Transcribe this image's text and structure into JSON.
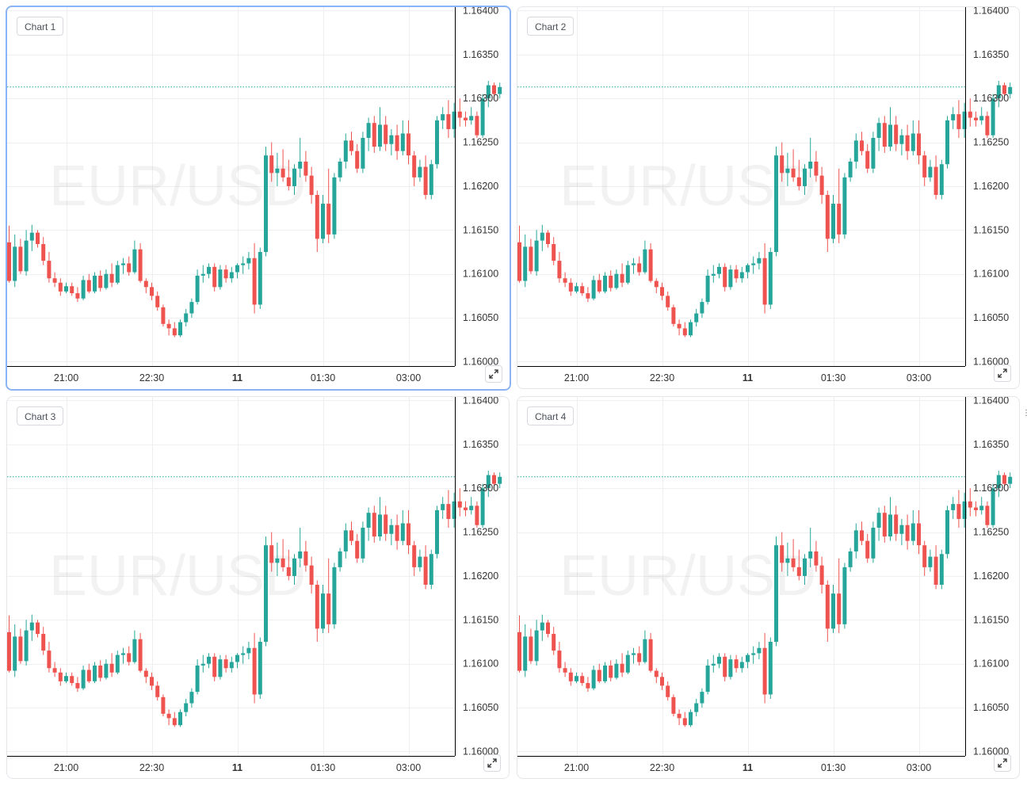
{
  "chart_data": [
    {
      "type": "candlestick",
      "title": "Chart 1",
      "watermark": "EUR/USD"
    },
    {
      "type": "candlestick",
      "title": "Chart 2",
      "watermark": "EUR/USD"
    },
    {
      "type": "candlestick",
      "title": "Chart 3",
      "watermark": "EUR/USD"
    },
    {
      "type": "candlestick",
      "title": "Chart 4",
      "watermark": "EUR/USD"
    }
  ],
  "shared": {
    "symbol": "EUR/USD",
    "y_ticks": [
      "1.16400",
      "1.16350",
      "1.16300",
      "1.16250",
      "1.16200",
      "1.16150",
      "1.16100",
      "1.16050",
      "1.16000"
    ],
    "ylim": [
      1.15995,
      1.16404
    ],
    "x_ticks": [
      {
        "label": "21:00",
        "index": 10,
        "bold": false
      },
      {
        "label": "22:30",
        "index": 25,
        "bold": false
      },
      {
        "label": "11",
        "index": 40,
        "bold": true
      },
      {
        "label": "01:30",
        "index": 55,
        "bold": false
      },
      {
        "label": "03:00",
        "index": 70,
        "bold": false
      }
    ],
    "last_price": 1.16313,
    "colors": {
      "up": "#26a69a",
      "down": "#ef5350",
      "grid": "#eeeff1",
      "axis": "#000000",
      "text": "#333333",
      "last_line": "#26a69a"
    },
    "candles": [
      {
        "o": 1.16136,
        "h": 1.16155,
        "l": 1.1609,
        "c": 1.16092
      },
      {
        "o": 1.16092,
        "h": 1.16145,
        "l": 1.16085,
        "c": 1.16131
      },
      {
        "o": 1.16131,
        "h": 1.1614,
        "l": 1.161,
        "c": 1.16103
      },
      {
        "o": 1.16103,
        "h": 1.1615,
        "l": 1.16098,
        "c": 1.16138
      },
      {
        "o": 1.16138,
        "h": 1.16156,
        "l": 1.16126,
        "c": 1.16147
      },
      {
        "o": 1.16147,
        "h": 1.1615,
        "l": 1.1613,
        "c": 1.16134
      },
      {
        "o": 1.16134,
        "h": 1.16142,
        "l": 1.1611,
        "c": 1.16115
      },
      {
        "o": 1.16115,
        "h": 1.16125,
        "l": 1.1609,
        "c": 1.16095
      },
      {
        "o": 1.16095,
        "h": 1.16102,
        "l": 1.16085,
        "c": 1.1609
      },
      {
        "o": 1.1609,
        "h": 1.16095,
        "l": 1.16075,
        "c": 1.1608
      },
      {
        "o": 1.1608,
        "h": 1.1609,
        "l": 1.16078,
        "c": 1.16086
      },
      {
        "o": 1.16086,
        "h": 1.1609,
        "l": 1.16075,
        "c": 1.16078
      },
      {
        "o": 1.16078,
        "h": 1.16085,
        "l": 1.16068,
        "c": 1.16072
      },
      {
        "o": 1.16072,
        "h": 1.16098,
        "l": 1.1607,
        "c": 1.16093
      },
      {
        "o": 1.16093,
        "h": 1.161,
        "l": 1.16078,
        "c": 1.1608
      },
      {
        "o": 1.1608,
        "h": 1.16102,
        "l": 1.16078,
        "c": 1.16098
      },
      {
        "o": 1.16098,
        "h": 1.16104,
        "l": 1.1608,
        "c": 1.16084
      },
      {
        "o": 1.16084,
        "h": 1.16105,
        "l": 1.16082,
        "c": 1.161
      },
      {
        "o": 1.161,
        "h": 1.16112,
        "l": 1.16085,
        "c": 1.1609
      },
      {
        "o": 1.1609,
        "h": 1.16115,
        "l": 1.16088,
        "c": 1.1611
      },
      {
        "o": 1.1611,
        "h": 1.16118,
        "l": 1.161,
        "c": 1.16112
      },
      {
        "o": 1.16112,
        "h": 1.1612,
        "l": 1.16098,
        "c": 1.16102
      },
      {
        "o": 1.16102,
        "h": 1.16138,
        "l": 1.161,
        "c": 1.16128
      },
      {
        "o": 1.16128,
        "h": 1.16135,
        "l": 1.1609,
        "c": 1.16092
      },
      {
        "o": 1.16092,
        "h": 1.16095,
        "l": 1.16078,
        "c": 1.16085
      },
      {
        "o": 1.16085,
        "h": 1.1609,
        "l": 1.1607,
        "c": 1.16075
      },
      {
        "o": 1.16075,
        "h": 1.1608,
        "l": 1.16058,
        "c": 1.16062
      },
      {
        "o": 1.16062,
        "h": 1.16065,
        "l": 1.1604,
        "c": 1.16043
      },
      {
        "o": 1.16043,
        "h": 1.16048,
        "l": 1.1603,
        "c": 1.16038
      },
      {
        "o": 1.16038,
        "h": 1.16045,
        "l": 1.16028,
        "c": 1.1603
      },
      {
        "o": 1.1603,
        "h": 1.16048,
        "l": 1.16028,
        "c": 1.16045
      },
      {
        "o": 1.16045,
        "h": 1.1606,
        "l": 1.1604,
        "c": 1.16055
      },
      {
        "o": 1.16055,
        "h": 1.16072,
        "l": 1.1605,
        "c": 1.16068
      },
      {
        "o": 1.16068,
        "h": 1.16105,
        "l": 1.16065,
        "c": 1.16098
      },
      {
        "o": 1.16098,
        "h": 1.1611,
        "l": 1.1609,
        "c": 1.161
      },
      {
        "o": 1.161,
        "h": 1.16112,
        "l": 1.16095,
        "c": 1.16108
      },
      {
        "o": 1.16108,
        "h": 1.16112,
        "l": 1.1608,
        "c": 1.16085
      },
      {
        "o": 1.16085,
        "h": 1.1611,
        "l": 1.16082,
        "c": 1.16105
      },
      {
        "o": 1.16105,
        "h": 1.1611,
        "l": 1.1609,
        "c": 1.16095
      },
      {
        "o": 1.16095,
        "h": 1.16108,
        "l": 1.1609,
        "c": 1.16102
      },
      {
        "o": 1.16102,
        "h": 1.16112,
        "l": 1.16095,
        "c": 1.1611
      },
      {
        "o": 1.1611,
        "h": 1.1612,
        "l": 1.161,
        "c": 1.16112
      },
      {
        "o": 1.16112,
        "h": 1.16125,
        "l": 1.16105,
        "c": 1.16118
      },
      {
        "o": 1.16118,
        "h": 1.16135,
        "l": 1.16055,
        "c": 1.16065
      },
      {
        "o": 1.16065,
        "h": 1.1613,
        "l": 1.1606,
        "c": 1.16125
      },
      {
        "o": 1.16125,
        "h": 1.16245,
        "l": 1.1612,
        "c": 1.16235
      },
      {
        "o": 1.16235,
        "h": 1.1625,
        "l": 1.16205,
        "c": 1.16215
      },
      {
        "o": 1.16215,
        "h": 1.16238,
        "l": 1.162,
        "c": 1.1622
      },
      {
        "o": 1.1622,
        "h": 1.16242,
        "l": 1.16205,
        "c": 1.1621
      },
      {
        "o": 1.1621,
        "h": 1.1623,
        "l": 1.16195,
        "c": 1.162
      },
      {
        "o": 1.162,
        "h": 1.16225,
        "l": 1.1619,
        "c": 1.1622
      },
      {
        "o": 1.1622,
        "h": 1.16255,
        "l": 1.1621,
        "c": 1.16228
      },
      {
        "o": 1.16228,
        "h": 1.1624,
        "l": 1.16205,
        "c": 1.16212
      },
      {
        "o": 1.16212,
        "h": 1.16222,
        "l": 1.1618,
        "c": 1.1619
      },
      {
        "o": 1.1619,
        "h": 1.16195,
        "l": 1.16125,
        "c": 1.1614
      },
      {
        "o": 1.1614,
        "h": 1.1619,
        "l": 1.16135,
        "c": 1.1618
      },
      {
        "o": 1.1618,
        "h": 1.1622,
        "l": 1.16135,
        "c": 1.16145
      },
      {
        "o": 1.16145,
        "h": 1.16215,
        "l": 1.1614,
        "c": 1.1621
      },
      {
        "o": 1.1621,
        "h": 1.16232,
        "l": 1.16205,
        "c": 1.16228
      },
      {
        "o": 1.16228,
        "h": 1.1626,
        "l": 1.1622,
        "c": 1.16252
      },
      {
        "o": 1.16252,
        "h": 1.16262,
        "l": 1.16235,
        "c": 1.1624
      },
      {
        "o": 1.1624,
        "h": 1.16248,
        "l": 1.16215,
        "c": 1.1622
      },
      {
        "o": 1.1622,
        "h": 1.16262,
        "l": 1.16215,
        "c": 1.16255
      },
      {
        "o": 1.16255,
        "h": 1.16278,
        "l": 1.1624,
        "c": 1.16272
      },
      {
        "o": 1.16272,
        "h": 1.1628,
        "l": 1.16238,
        "c": 1.16245
      },
      {
        "o": 1.16245,
        "h": 1.1629,
        "l": 1.1624,
        "c": 1.1627
      },
      {
        "o": 1.1627,
        "h": 1.1628,
        "l": 1.1624,
        "c": 1.16248
      },
      {
        "o": 1.16248,
        "h": 1.16265,
        "l": 1.16235,
        "c": 1.16258
      },
      {
        "o": 1.16258,
        "h": 1.1627,
        "l": 1.1623,
        "c": 1.1624
      },
      {
        "o": 1.1624,
        "h": 1.16275,
        "l": 1.16235,
        "c": 1.1626
      },
      {
        "o": 1.1626,
        "h": 1.16275,
        "l": 1.16225,
        "c": 1.16235
      },
      {
        "o": 1.16235,
        "h": 1.1624,
        "l": 1.162,
        "c": 1.1621
      },
      {
        "o": 1.1621,
        "h": 1.1623,
        "l": 1.16205,
        "c": 1.16222
      },
      {
        "o": 1.16222,
        "h": 1.16235,
        "l": 1.16185,
        "c": 1.1619
      },
      {
        "o": 1.1619,
        "h": 1.1623,
        "l": 1.16185,
        "c": 1.16225
      },
      {
        "o": 1.16225,
        "h": 1.1628,
        "l": 1.1622,
        "c": 1.16275
      },
      {
        "o": 1.16275,
        "h": 1.1629,
        "l": 1.16265,
        "c": 1.16282
      },
      {
        "o": 1.16282,
        "h": 1.16298,
        "l": 1.16255,
        "c": 1.16265
      },
      {
        "o": 1.16265,
        "h": 1.16295,
        "l": 1.16255,
        "c": 1.16285
      },
      {
        "o": 1.16285,
        "h": 1.163,
        "l": 1.16268,
        "c": 1.16278
      },
      {
        "o": 1.16278,
        "h": 1.16285,
        "l": 1.16268,
        "c": 1.16275
      },
      {
        "o": 1.16275,
        "h": 1.1629,
        "l": 1.1627,
        "c": 1.1628
      },
      {
        "o": 1.1628,
        "h": 1.16285,
        "l": 1.16255,
        "c": 1.16258
      },
      {
        "o": 1.16258,
        "h": 1.16305,
        "l": 1.16255,
        "c": 1.163
      },
      {
        "o": 1.163,
        "h": 1.1632,
        "l": 1.1629,
        "c": 1.16315
      },
      {
        "o": 1.16315,
        "h": 1.16318,
        "l": 1.163,
        "c": 1.16305
      },
      {
        "o": 1.16305,
        "h": 1.16318,
        "l": 1.163,
        "c": 1.16313
      }
    ]
  },
  "labels": {
    "chart1": "Chart 1",
    "chart2": "Chart 2",
    "chart3": "Chart 3",
    "chart4": "Chart 4"
  }
}
